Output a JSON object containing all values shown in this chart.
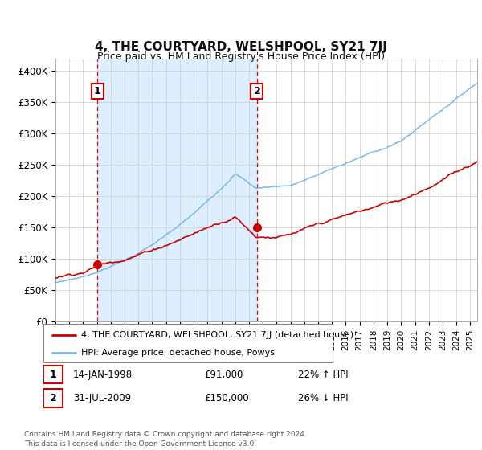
{
  "title": "4, THE COURTYARD, WELSHPOOL, SY21 7JJ",
  "subtitle": "Price paid vs. HM Land Registry's House Price Index (HPI)",
  "legend_line1": "4, THE COURTYARD, WELSHPOOL, SY21 7JJ (detached house)",
  "legend_line2": "HPI: Average price, detached house, Powys",
  "footer": "Contains HM Land Registry data © Crown copyright and database right 2024.\nThis data is licensed under the Open Government Licence v3.0.",
  "hpi_color": "#7ab8e8",
  "price_color": "#cc0000",
  "vline_color": "#dd0000",
  "shade_color": "#ddeeff",
  "ylim": [
    0,
    420000
  ],
  "ytick_vals": [
    0,
    50000,
    100000,
    150000,
    200000,
    250000,
    300000,
    350000,
    400000
  ],
  "ytick_labels": [
    "£0",
    "£50K",
    "£100K",
    "£150K",
    "£200K",
    "£250K",
    "£300K",
    "£350K",
    "£400K"
  ],
  "sale1_year": 1998.04,
  "sale1_price": 91000,
  "sale2_year": 2009.58,
  "sale2_price": 150000,
  "xmin": 1995,
  "xmax": 2025.5
}
